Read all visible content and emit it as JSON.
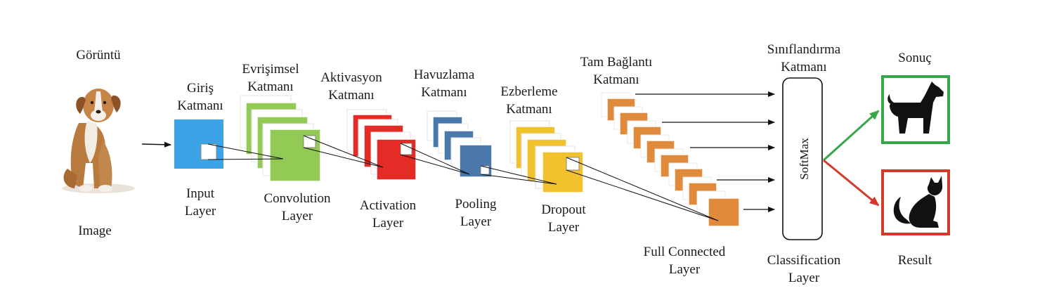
{
  "colors": {
    "input": "#3ba3e6",
    "convolution": "#93c955",
    "activation": "#e52b26",
    "pooling": "#4a78ab",
    "dropout": "#f2c12e",
    "full_connected": "#e08a3c",
    "result_dog": "#3aa64a",
    "result_cat": "#d33a2c",
    "line": "#111111"
  },
  "icons": {
    "input_image": "dog-photo",
    "result_top": "dog-silhouette-icon",
    "result_bottom": "cat-silhouette-icon"
  },
  "labels": {
    "image_tr": "Görüntü",
    "image_en": "Image",
    "input_tr": [
      "Giriş",
      "Katmanı"
    ],
    "input_en": [
      "Input",
      "Layer"
    ],
    "conv_tr": [
      "Evrişimsel",
      "Katmanı"
    ],
    "conv_en": [
      "Convolution",
      "Layer"
    ],
    "act_tr": [
      "Aktivasyon",
      "Katmanı"
    ],
    "act_en": [
      "Activation",
      "Layer"
    ],
    "pool_tr": [
      "Havuzlama",
      "Katmanı"
    ],
    "pool_en": [
      "Pooling",
      "Layer"
    ],
    "drop_tr": [
      "Ezberleme",
      "Katmanı"
    ],
    "drop_en": [
      "Dropout",
      "Layer"
    ],
    "fc_tr": [
      "Tam Bağlantı",
      "Katmanı"
    ],
    "fc_en": [
      "Full Connected",
      "Layer"
    ],
    "cls_tr": [
      "Sınıflandırma",
      "Katmanı"
    ],
    "cls_en": [
      "Classification",
      "Layer"
    ],
    "result_tr": "Sonuç",
    "result_en": "Result",
    "softmax": "SoftMax"
  }
}
